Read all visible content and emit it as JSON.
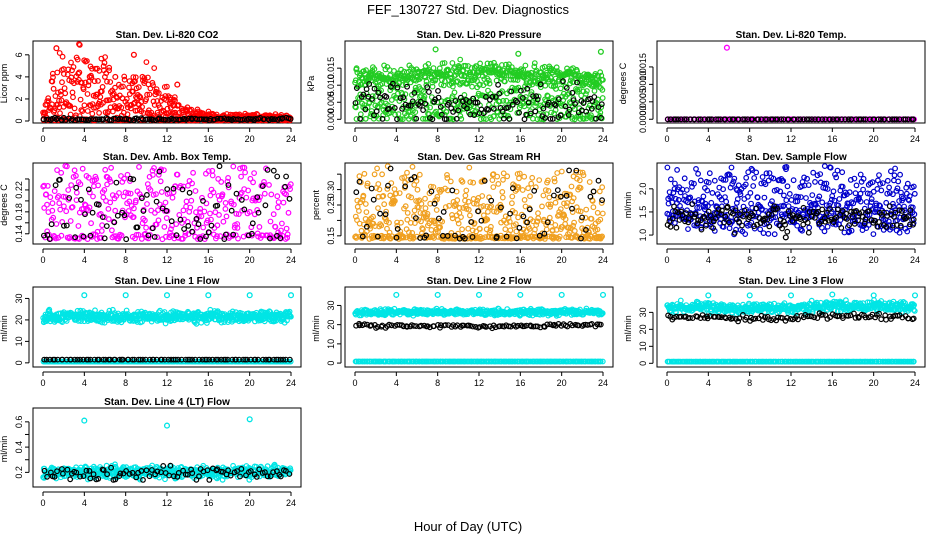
{
  "figure": {
    "title": "FEF_130727  Std. Dev. Diagnostics",
    "xlabel": "Hour of Day (UTC)",
    "xticks": [
      "0",
      "4",
      "8",
      "12",
      "16",
      "20",
      "24"
    ]
  },
  "chart_data": [
    {
      "type": "scatter",
      "id": "co2",
      "title": "Stan. Dev. Li-820 CO2",
      "ylabel": "Licor ppm",
      "xlim": [
        0,
        24
      ],
      "ylim": [
        0,
        6.8
      ],
      "yticks": [
        0,
        2,
        4,
        6
      ],
      "ytick_labels": [
        "0",
        "2",
        "4",
        "6"
      ],
      "series": [
        {
          "name": "main",
          "color": "#ff0000",
          "density": 600,
          "profile": [
            [
              0,
              0.3
            ],
            [
              1,
              1.8
            ],
            [
              2,
              2.5
            ],
            [
              4,
              2.2
            ],
            [
              6,
              2.0
            ],
            [
              9,
              1.6
            ],
            [
              12,
              1.4
            ],
            [
              13.5,
              0.5
            ],
            [
              16,
              0.25
            ],
            [
              24,
              0.2
            ]
          ],
          "spread": 0.65,
          "floor": 0.05,
          "outliers": [
            [
              1.3,
              6.6
            ],
            [
              8.8,
              6.0
            ],
            [
              2.0,
              4.7
            ],
            [
              3.5,
              4.4
            ],
            [
              13.0,
              3.3
            ],
            [
              7.0,
              4.0
            ]
          ]
        },
        {
          "name": "reference",
          "color": "#000000",
          "density": 120,
          "profile": [
            [
              0,
              0.15
            ],
            [
              24,
              0.15
            ]
          ],
          "spread": 0.25,
          "floor": 0.02,
          "outliers": []
        }
      ]
    },
    {
      "type": "scatter",
      "id": "pressure",
      "title": "Stan. Dev. Li-820 Pressure",
      "ylabel": "kPa",
      "xlim": [
        0,
        24
      ],
      "ylim": [
        -0.0005,
        0.0215
      ],
      "yticks": [
        0,
        0.005,
        0.01,
        0.015
      ],
      "ytick_labels": [
        "0.000",
        "0.005",
        "0.010",
        "0.015"
      ],
      "series": [
        {
          "name": "upper band",
          "color": "#22cc22",
          "density": 500,
          "profile": [
            [
              0,
              0.0115
            ],
            [
              8,
              0.013
            ],
            [
              12,
              0.0135
            ],
            [
              18,
              0.0125
            ],
            [
              24,
              0.0115
            ]
          ],
          "spread": 0.09,
          "floor": 0,
          "outliers": [
            [
              7.8,
              0.0205
            ],
            [
              15.8,
              0.0192
            ],
            [
              23.8,
              0.0198
            ]
          ]
        },
        {
          "name": "lower band",
          "color": "#22cc22",
          "density": 350,
          "profile": [
            [
              0,
              0.004
            ],
            [
              24,
              0.004
            ]
          ],
          "spread": 0.5,
          "floor": 0,
          "outliers": []
        },
        {
          "name": "reference",
          "color": "#000000",
          "density": 140,
          "profile": [
            [
              0,
              0.004
            ],
            [
              24,
              0.004
            ]
          ],
          "spread": 0.5,
          "floor": 0,
          "outliers": []
        }
      ]
    },
    {
      "type": "scatter",
      "id": "temp",
      "title": "Stan. Dev. Li-820 Temp.",
      "ylabel": "degrees C",
      "xlim": [
        0,
        24
      ],
      "ylim": [
        -5e-05,
        0.0021
      ],
      "yticks": [
        0,
        0.0005,
        0.001,
        0.0015
      ],
      "ytick_labels": [
        "0.0000",
        "0.0005",
        "0.0010",
        "0.0015"
      ],
      "series": [
        {
          "name": "main",
          "color": "#ff00ff",
          "density": 120,
          "profile": [
            [
              0,
              0
            ],
            [
              24,
              0
            ]
          ],
          "spread": 0,
          "floor": 0,
          "outliers": [
            [
              5.8,
              0.00205
            ]
          ]
        },
        {
          "name": "reference",
          "color": "#000000",
          "density": 90,
          "profile": [
            [
              0,
              0
            ],
            [
              24,
              0
            ]
          ],
          "spread": 0,
          "floor": 0,
          "outliers": []
        }
      ]
    },
    {
      "type": "scatter",
      "id": "ambbox",
      "title": "Stan. Dev. Amb. Box Temp.",
      "ylabel": "degrees C",
      "xlim": [
        0,
        24
      ],
      "ylim": [
        0.125,
        0.26
      ],
      "yticks": [
        0.14,
        0.16,
        0.18,
        0.2,
        0.22,
        0.24
      ],
      "ytick_labels": [
        "0.14",
        "",
        "0.18",
        "",
        "0.22",
        ""
      ],
      "series": [
        {
          "name": "main",
          "color": "#ff00ff",
          "density": 420,
          "profile": [
            [
              0,
              0.185
            ],
            [
              24,
              0.185
            ]
          ],
          "spread": 0.2,
          "floor": 0.13,
          "outliers": []
        },
        {
          "name": "reference",
          "color": "#000000",
          "density": 90,
          "profile": [
            [
              0,
              0.18
            ],
            [
              24,
              0.18
            ]
          ],
          "spread": 0.18,
          "floor": 0.13,
          "outliers": []
        }
      ]
    },
    {
      "type": "scatter",
      "id": "rh",
      "title": "Stan. Dev. Gas Stream RH",
      "ylabel": "percent",
      "xlim": [
        0,
        24
      ],
      "ylim": [
        0.13,
        0.37
      ],
      "yticks": [
        0.15,
        0.2,
        0.25,
        0.3,
        0.35
      ],
      "ytick_labels": [
        "0.15",
        "",
        "0.25",
        "0.30",
        ""
      ],
      "series": [
        {
          "name": "main",
          "color": "#f0a020",
          "density": 600,
          "profile": [
            [
              0,
              0.2
            ],
            [
              24,
              0.2
            ]
          ],
          "spread": 0.28,
          "floor": 0.14,
          "outliers": []
        },
        {
          "name": "reference",
          "color": "#000000",
          "density": 70,
          "profile": [
            [
              0,
              0.22
            ],
            [
              24,
              0.22
            ]
          ],
          "spread": 0.3,
          "floor": 0.14,
          "outliers": []
        }
      ]
    },
    {
      "type": "scatter",
      "id": "sample",
      "title": "Stan. Dev. Sample Flow",
      "ylabel": "ml/min",
      "xlim": [
        0,
        24
      ],
      "ylim": [
        0.85,
        2.45
      ],
      "yticks": [
        1.0,
        1.5,
        2.0
      ],
      "ytick_labels": [
        "1.0",
        "1.5",
        "2.0"
      ],
      "series": [
        {
          "name": "upper band",
          "color": "#0000cc",
          "density": 260,
          "profile": [
            [
              0,
              1.9
            ],
            [
              10,
              2.15
            ],
            [
              16,
              2.0
            ],
            [
              24,
              1.9
            ]
          ],
          "spread": 0.1,
          "floor": 1.0,
          "outliers": []
        },
        {
          "name": "lower band",
          "color": "#0000cc",
          "density": 300,
          "profile": [
            [
              0,
              1.4
            ],
            [
              24,
              1.4
            ]
          ],
          "spread": 0.09,
          "floor": 1.0,
          "outliers": []
        },
        {
          "name": "reference",
          "color": "#000000",
          "density": 160,
          "profile": [
            [
              0,
              1.38
            ],
            [
              24,
              1.38
            ]
          ],
          "spread": 0.06,
          "floor": 1.0,
          "outliers": [
            [
              11.5,
              0.95
            ]
          ]
        }
      ]
    },
    {
      "type": "scatter",
      "id": "line1",
      "title": "Stan. Dev. Line 1 Flow",
      "ylabel": "ml/min",
      "xlim": [
        0,
        24
      ],
      "ylim": [
        -1,
        33
      ],
      "yticks": [
        0,
        10,
        20,
        30
      ],
      "ytick_labels": [
        "0",
        "10",
        "20",
        "30"
      ],
      "series": [
        {
          "name": "main",
          "color": "#00e5e5",
          "density": 600,
          "profile": [
            [
              0,
              21.5
            ],
            [
              24,
              21.5
            ]
          ],
          "spread": 0.04,
          "floor": 0,
          "outliers": [
            [
              4,
              31.5
            ],
            [
              8,
              31.5
            ],
            [
              12,
              31.5
            ],
            [
              16,
              31.5
            ],
            [
              20,
              31.5
            ],
            [
              24,
              31.5
            ]
          ]
        },
        {
          "name": "low",
          "color": "#00e5e5",
          "density": 200,
          "profile": [
            [
              0,
              0.6
            ],
            [
              24,
              0.6
            ]
          ],
          "spread": 0,
          "floor": 0,
          "outliers": []
        },
        {
          "name": "reference",
          "color": "#000000",
          "density": 90,
          "profile": [
            [
              0,
              1.5
            ],
            [
              24,
              1.5
            ]
          ],
          "spread": 0,
          "floor": 0,
          "outliers": []
        }
      ]
    },
    {
      "type": "scatter",
      "id": "line2",
      "title": "Stan. Dev. Line 2 Flow",
      "ylabel": "ml/min",
      "xlim": [
        0,
        24
      ],
      "ylim": [
        -1,
        37
      ],
      "yticks": [
        0,
        10,
        20,
        30
      ],
      "ytick_labels": [
        "0",
        "10",
        "20",
        "30"
      ],
      "series": [
        {
          "name": "main",
          "color": "#00e5e5",
          "density": 500,
          "profile": [
            [
              0,
              26.5
            ],
            [
              24,
              26.5
            ]
          ],
          "spread": 0.02,
          "floor": 0,
          "outliers": [
            [
              4,
              35.5
            ],
            [
              8,
              35.5
            ],
            [
              12,
              35.5
            ],
            [
              16,
              35.5
            ],
            [
              20,
              35.5
            ],
            [
              24,
              35.5
            ]
          ]
        },
        {
          "name": "low",
          "color": "#00e5e5",
          "density": 200,
          "profile": [
            [
              0,
              0.8
            ],
            [
              24,
              0.8
            ]
          ],
          "spread": 0,
          "floor": 0,
          "outliers": []
        },
        {
          "name": "reference",
          "color": "#000000",
          "density": 110,
          "profile": [
            [
              0,
              19.5
            ],
            [
              12,
              19.0
            ],
            [
              24,
              20.0
            ]
          ],
          "spread": 0.015,
          "floor": 0,
          "outliers": []
        }
      ]
    },
    {
      "type": "scatter",
      "id": "line3",
      "title": "Stan. Dev. Line 3 Flow",
      "ylabel": "ml/min",
      "xlim": [
        0,
        24
      ],
      "ylim": [
        -1,
        42
      ],
      "yticks": [
        0,
        10,
        20,
        30
      ],
      "ytick_labels": [
        "0",
        "10",
        "20",
        "30"
      ],
      "series": [
        {
          "name": "main",
          "color": "#00e5e5",
          "density": 500,
          "profile": [
            [
              0,
              33
            ],
            [
              12,
              32
            ],
            [
              16,
              34
            ],
            [
              24,
              33
            ]
          ],
          "spread": 0.03,
          "floor": 0,
          "outliers": [
            [
              4,
              40
            ],
            [
              8,
              40
            ],
            [
              12,
              40
            ],
            [
              16,
              40.5
            ],
            [
              20,
              40
            ],
            [
              24,
              40
            ]
          ]
        },
        {
          "name": "low",
          "color": "#00e5e5",
          "density": 200,
          "profile": [
            [
              0,
              1.0
            ],
            [
              24,
              1.0
            ]
          ],
          "spread": 0,
          "floor": 0,
          "outliers": []
        },
        {
          "name": "reference",
          "color": "#000000",
          "density": 110,
          "profile": [
            [
              0,
              27
            ],
            [
              12,
              26.5
            ],
            [
              16,
              28
            ],
            [
              24,
              27
            ]
          ],
          "spread": 0.02,
          "floor": 0,
          "outliers": []
        }
      ]
    },
    {
      "type": "scatter",
      "id": "line4",
      "title": "Stan. Dev. Line 4 (LT) Flow",
      "ylabel": "ml/min",
      "xlim": [
        0,
        24
      ],
      "ylim": [
        0.1,
        0.67
      ],
      "yticks": [
        0.2,
        0.3,
        0.4,
        0.5,
        0.6
      ],
      "ytick_labels": [
        "0.2",
        "",
        "0.4",
        "",
        "0.6"
      ],
      "series": [
        {
          "name": "main",
          "color": "#00e5e5",
          "density": 550,
          "profile": [
            [
              0,
              0.2
            ],
            [
              24,
              0.2
            ]
          ],
          "spread": 0.08,
          "floor": 0.14,
          "outliers": [
            [
              4,
              0.61
            ],
            [
              12,
              0.57
            ],
            [
              20,
              0.62
            ]
          ]
        },
        {
          "name": "reference",
          "color": "#000000",
          "density": 90,
          "profile": [
            [
              0,
              0.19
            ],
            [
              24,
              0.19
            ]
          ],
          "spread": 0.1,
          "floor": 0.14,
          "outliers": []
        }
      ]
    }
  ]
}
